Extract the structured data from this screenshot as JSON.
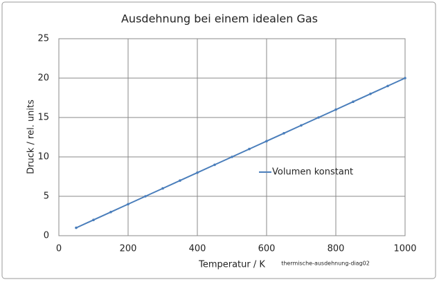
{
  "chart_data": {
    "type": "line",
    "title": "Ausdehnung bei einem idealen Gas",
    "x_label": "Temperatur  / K",
    "y_label": "Druck / rel. units",
    "annotation": "thermische-ausdehnung-diag02",
    "x": [
      50,
      100,
      150,
      200,
      250,
      300,
      350,
      400,
      450,
      500,
      550,
      600,
      650,
      700,
      750,
      800,
      850,
      900,
      950,
      1000
    ],
    "series": [
      {
        "name": "Volumen konstant",
        "color": "#4a7ebb",
        "values": [
          1,
          2,
          3,
          4,
          5,
          6,
          7,
          8,
          9,
          10,
          11,
          12,
          13,
          14,
          15,
          16,
          17,
          18,
          19,
          20
        ]
      }
    ],
    "xlim": [
      0,
      1000
    ],
    "xticks": [
      0,
      200,
      400,
      600,
      800,
      1000
    ],
    "ylim": [
      0,
      25
    ],
    "yticks": [
      0,
      5,
      10,
      15,
      20,
      25
    ],
    "grid": true,
    "legend": "right"
  }
}
